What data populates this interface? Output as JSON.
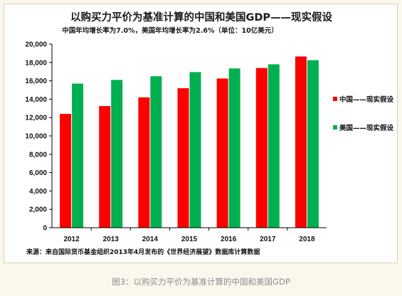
{
  "chart_data": {
    "type": "bar",
    "title": "以购买力平价为基准计算的中国和美国GDP——现实假设",
    "subtitle": "中国年均增长率为7.0%，美国年均增长率为2.6%（单位：10亿美元）",
    "categories": [
      "2012",
      "2013",
      "2014",
      "2015",
      "2016",
      "2017",
      "2018"
    ],
    "series": [
      {
        "name": "中国——现实假设",
        "color": "#ff0000",
        "values": [
          12400,
          13250,
          14200,
          15200,
          16250,
          17400,
          18650
        ]
      },
      {
        "name": "美国——现实假设",
        "color": "#00b050",
        "values": [
          15700,
          16100,
          16500,
          16950,
          17350,
          17800,
          18250
        ]
      }
    ],
    "ylim": [
      0,
      20000
    ],
    "yticks": [
      "0",
      "2,000",
      "4,000",
      "6,000",
      "8,000",
      "10,000",
      "12,000",
      "14,000",
      "16,000",
      "18,000",
      "20,000"
    ],
    "grid": false,
    "legend": "right",
    "source": "来源：来自国际货币基金组织2013年4月发布的《世界经济展望》数据库计算数据"
  },
  "caption": "图3：以购买力平价为基准计算的中国和美国GDP"
}
